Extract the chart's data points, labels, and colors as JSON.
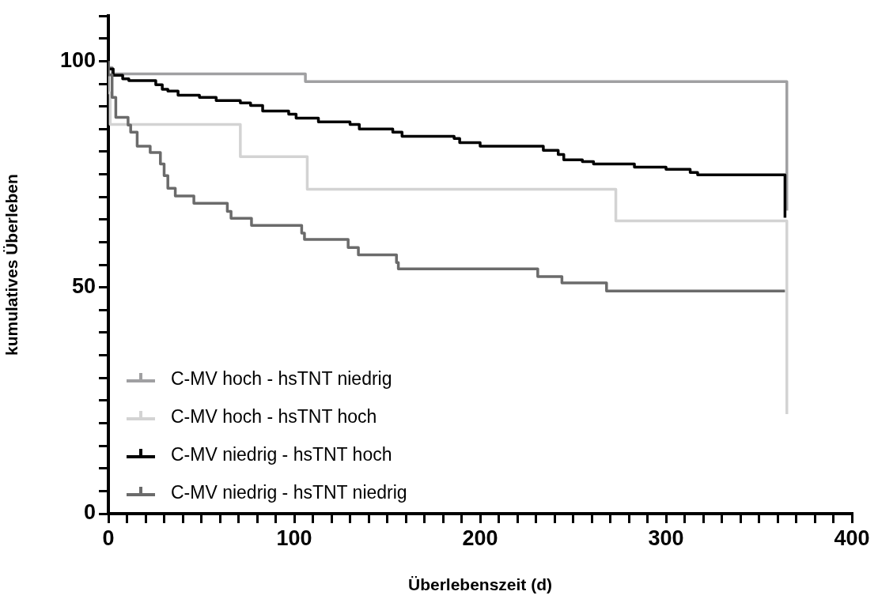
{
  "chart_data": {
    "type": "step",
    "xlabel": "Überlebenszeit (d)",
    "ylabel": "kumulatives Überleben",
    "xlim": [
      0,
      400
    ],
    "ylim": [
      0,
      110
    ],
    "xticks": [
      0,
      {
        "value": 10,
        "label": null
      },
      {
        "value": 20,
        "label": null
      },
      {
        "value": 30,
        "label": null
      },
      {
        "value": 40,
        "label": null
      },
      {
        "value": 50,
        "label": null
      },
      {
        "value": 60,
        "label": null
      },
      {
        "value": 70,
        "label": null
      },
      {
        "value": 80,
        "label": null
      },
      {
        "value": 90,
        "label": null
      },
      100,
      {
        "value": 110,
        "label": null
      },
      {
        "value": 120,
        "label": null
      },
      {
        "value": 130,
        "label": null
      },
      {
        "value": 140,
        "label": null
      },
      {
        "value": 150,
        "label": null
      },
      {
        "value": 160,
        "label": null
      },
      {
        "value": 170,
        "label": null
      },
      {
        "value": 180,
        "label": null
      },
      {
        "value": 190,
        "label": null
      },
      200,
      {
        "value": 210,
        "label": null
      },
      {
        "value": 220,
        "label": null
      },
      {
        "value": 230,
        "label": null
      },
      {
        "value": 240,
        "label": null
      },
      {
        "value": 250,
        "label": null
      },
      {
        "value": 260,
        "label": null
      },
      {
        "value": 270,
        "label": null
      },
      {
        "value": 280,
        "label": null
      },
      {
        "value": 290,
        "label": null
      },
      300,
      {
        "value": 310,
        "label": null
      },
      {
        "value": 320,
        "label": null
      },
      {
        "value": 330,
        "label": null
      },
      {
        "value": 340,
        "label": null
      },
      {
        "value": 350,
        "label": null
      },
      {
        "value": 360,
        "label": null
      },
      {
        "value": 370,
        "label": null
      },
      {
        "value": 380,
        "label": null
      },
      {
        "value": 390,
        "label": null
      },
      400
    ],
    "yticks": [
      0,
      {
        "value": 5,
        "label": null
      },
      {
        "value": 10,
        "label": null
      },
      {
        "value": 15,
        "label": null
      },
      {
        "value": 20,
        "label": null
      },
      {
        "value": 25,
        "label": null
      },
      {
        "value": 30,
        "label": null
      },
      {
        "value": 35,
        "label": null
      },
      {
        "value": 40,
        "label": null
      },
      {
        "value": 45,
        "label": null
      },
      50,
      {
        "value": 55,
        "label": null
      },
      {
        "value": 60,
        "label": null
      },
      {
        "value": 65,
        "label": null
      },
      {
        "value": 70,
        "label": null
      },
      {
        "value": 75,
        "label": null
      },
      {
        "value": 80,
        "label": null
      },
      {
        "value": 85,
        "label": null
      },
      {
        "value": 90,
        "label": null
      },
      {
        "value": 95,
        "label": null
      },
      100,
      {
        "value": 105,
        "label": null
      },
      {
        "value": 110,
        "label": null
      }
    ],
    "legend": "bottom left",
    "series": [
      {
        "name": "C-MV hoch - hsTNT niedrig",
        "color": "#a0a0a2",
        "x": [
          0,
          2,
          106,
          192,
          365,
          365
        ],
        "values": [
          100,
          98.6,
          97.2,
          95.5,
          95.5,
          67
        ]
      },
      {
        "name": "C-MV hoch - hsTNT hoch",
        "color": "#d3d3d3",
        "x": [
          0,
          1,
          71,
          107,
          273,
          354,
          365,
          365
        ],
        "values": [
          100,
          93,
          86,
          78.9,
          71.7,
          64.7,
          64.7,
          22
        ]
      },
      {
        "name": "C-MV niedrig - hsTNT hoch",
        "color": "#000000",
        "x": [
          0,
          2.6,
          7.7,
          11,
          25.5,
          29,
          32,
          37.5,
          49,
          58,
          71,
          76.5,
          83,
          97,
          101,
          113,
          130,
          135,
          153,
          158,
          186,
          189,
          200,
          234,
          242,
          245,
          255,
          261,
          283,
          300,
          313,
          317,
          320,
          364,
          364
        ],
        "values": [
          100,
          98.3,
          96.9,
          96.1,
          95.7,
          94.8,
          93.8,
          93.4,
          92.5,
          92,
          91.3,
          90.8,
          90.2,
          89,
          88.3,
          87.4,
          86.6,
          86,
          85,
          84.3,
          83.4,
          82.9,
          82,
          81.2,
          80.3,
          79.4,
          78.2,
          77.8,
          77.3,
          76.6,
          76.1,
          75.4,
          74.9,
          74.9,
          65.4
        ]
      },
      {
        "name": "C-MV niedrig - hsTNT niedrig",
        "color": "#6b6b6b",
        "x": [
          0,
          2,
          4,
          10.6,
          12,
          15.5,
          22.5,
          28,
          30,
          32,
          36,
          46,
          64,
          66,
          77,
          104,
          105.5,
          129,
          134.5,
          155,
          156,
          231,
          244,
          268,
          277,
          364
        ],
        "values": [
          100,
          97,
          92,
          87.6,
          85.9,
          84.3,
          81.2,
          79.8,
          77.3,
          74.7,
          71.9,
          70.2,
          68.6,
          66.8,
          65.3,
          63.7,
          62,
          60.6,
          58.8,
          57.2,
          55.5,
          54.1,
          52.4,
          51,
          49.2,
          49.2
        ]
      }
    ]
  }
}
